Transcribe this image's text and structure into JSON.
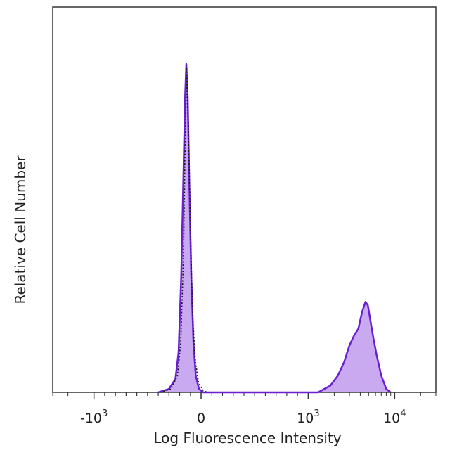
{
  "chart_data": {
    "type": "area",
    "title": "",
    "xlabel": "Log Fluorescence Intensity",
    "ylabel": "Relative Cell Number",
    "x_scale": "biexponential",
    "xlim": [
      -3000,
      30000
    ],
    "ylim": [
      0,
      1.15
    ],
    "grid": false,
    "legend": "none",
    "x_ticks": [
      {
        "value": -1000,
        "base": "-10",
        "exp": "3"
      },
      {
        "value": 0,
        "base": "0",
        "exp": ""
      },
      {
        "value": 1000,
        "base": "10",
        "exp": "3"
      },
      {
        "value": 10000,
        "base": "10",
        "exp": "4"
      }
    ],
    "series": [
      {
        "style": "dotted",
        "color": "#1a1a1a",
        "x": [
          -380,
          -280,
          -220,
          -190,
          -165,
          -150,
          -135,
          -118,
          -100,
          -80,
          -55,
          -25,
          20,
          60
        ],
        "y": [
          0,
          0.01,
          0.05,
          0.15,
          0.4,
          0.72,
          0.97,
          0.78,
          0.5,
          0.24,
          0.1,
          0.03,
          0.005,
          0
        ]
      },
      {
        "style": "filled",
        "color": "#6a1fd1",
        "fill": "#c9aaf0",
        "x": [
          -400,
          -300,
          -240,
          -210,
          -185,
          -165,
          -150,
          -138,
          -125,
          -110,
          -92,
          -72,
          -50,
          -20,
          20,
          60,
          1300,
          1800,
          2200,
          2600,
          3000,
          3400,
          3800,
          4200,
          4600,
          4900,
          5200,
          5600,
          6200,
          7000,
          8000,
          9000
        ],
        "y": [
          0,
          0.01,
          0.04,
          0.12,
          0.35,
          0.65,
          0.88,
          0.98,
          0.88,
          0.62,
          0.35,
          0.15,
          0.05,
          0.01,
          0,
          0,
          0,
          0.02,
          0.05,
          0.09,
          0.14,
          0.17,
          0.19,
          0.24,
          0.27,
          0.26,
          0.22,
          0.17,
          0.11,
          0.05,
          0.01,
          0
        ]
      }
    ]
  }
}
